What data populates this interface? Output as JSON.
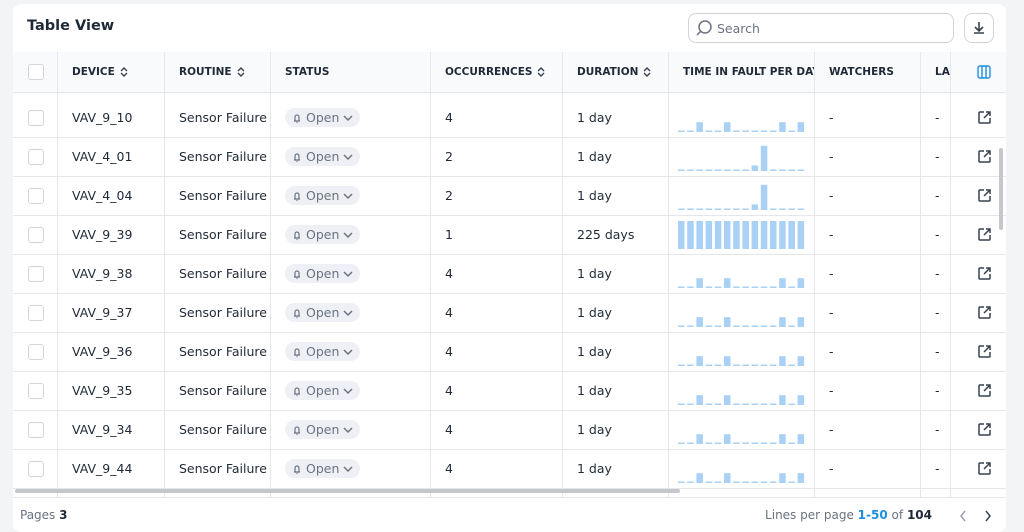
{
  "header": {
    "title": "Table View",
    "search_placeholder": "Search"
  },
  "table": {
    "columns": [
      "DEVICE",
      "ROUTINE",
      "STATUS",
      "OCCURRENCES",
      "DURATION",
      "TIME IN FAULT PER DAY",
      "WATCHERS",
      "LA"
    ],
    "rows": [
      {
        "device": "VAV_9_10",
        "routine": "Sensor Failure...",
        "status": "Open",
        "occurrences": 4,
        "duration": "1 day",
        "fault_per_day": [
          0,
          0,
          0.35,
          0,
          0,
          0.35,
          0,
          0,
          0,
          0,
          0,
          0.35,
          0,
          0.35
        ],
        "watchers": "-",
        "last": "-"
      },
      {
        "device": "VAV_4_01",
        "routine": "Sensor Failure...",
        "status": "Open",
        "occurrences": 2,
        "duration": "1 day",
        "fault_per_day": [
          0,
          0,
          0,
          0,
          0,
          0,
          0,
          0,
          0.2,
          0.9,
          0,
          0,
          0,
          0
        ],
        "watchers": "-",
        "last": "-"
      },
      {
        "device": "VAV_4_04",
        "routine": "Sensor Failure...",
        "status": "Open",
        "occurrences": 2,
        "duration": "1 day",
        "fault_per_day": [
          0,
          0,
          0,
          0,
          0,
          0,
          0,
          0,
          0.2,
          0.9,
          0,
          0,
          0,
          0
        ],
        "watchers": "-",
        "last": "-"
      },
      {
        "device": "VAV_9_39",
        "routine": "Sensor Failure...",
        "status": "Open",
        "occurrences": 1,
        "duration": "225 days",
        "fault_per_day": [
          1,
          1,
          1,
          1,
          1,
          1,
          1,
          1,
          1,
          1,
          1,
          1,
          1,
          1
        ],
        "watchers": "-",
        "last": "-"
      },
      {
        "device": "VAV_9_38",
        "routine": "Sensor Failure...",
        "status": "Open",
        "occurrences": 4,
        "duration": "1 day",
        "fault_per_day": [
          0,
          0,
          0.35,
          0,
          0,
          0.35,
          0,
          0,
          0,
          0,
          0,
          0.35,
          0,
          0.35
        ],
        "watchers": "-",
        "last": "-"
      },
      {
        "device": "VAV_9_37",
        "routine": "Sensor Failure...",
        "status": "Open",
        "occurrences": 4,
        "duration": "1 day",
        "fault_per_day": [
          0,
          0,
          0.35,
          0,
          0,
          0.35,
          0,
          0,
          0,
          0,
          0,
          0.35,
          0,
          0.35
        ],
        "watchers": "-",
        "last": "-"
      },
      {
        "device": "VAV_9_36",
        "routine": "Sensor Failure...",
        "status": "Open",
        "occurrences": 4,
        "duration": "1 day",
        "fault_per_day": [
          0,
          0,
          0.35,
          0,
          0,
          0.35,
          0,
          0,
          0,
          0,
          0,
          0.35,
          0,
          0.35
        ],
        "watchers": "-",
        "last": "-"
      },
      {
        "device": "VAV_9_35",
        "routine": "Sensor Failure...",
        "status": "Open",
        "occurrences": 4,
        "duration": "1 day",
        "fault_per_day": [
          0,
          0,
          0.35,
          0,
          0,
          0.35,
          0,
          0,
          0,
          0,
          0,
          0.35,
          0,
          0.35
        ],
        "watchers": "-",
        "last": "-"
      },
      {
        "device": "VAV_9_34",
        "routine": "Sensor Failure...",
        "status": "Open",
        "occurrences": 4,
        "duration": "1 day",
        "fault_per_day": [
          0,
          0,
          0.35,
          0,
          0,
          0.35,
          0,
          0,
          0,
          0,
          0,
          0.35,
          0,
          0.35
        ],
        "watchers": "-",
        "last": "-"
      },
      {
        "device": "VAV_9_44",
        "routine": "Sensor Failure...",
        "status": "Open",
        "occurrences": 4,
        "duration": "1 day",
        "fault_per_day": [
          0,
          0,
          0.35,
          0,
          0,
          0.35,
          0,
          0,
          0,
          0,
          0,
          0.35,
          0,
          0.35
        ],
        "watchers": "-",
        "last": "-"
      }
    ]
  },
  "footer": {
    "pages_label": "Pages",
    "pages": 3,
    "lines_label": "Lines per page",
    "range": "1-50",
    "of": "of",
    "total": 104
  }
}
